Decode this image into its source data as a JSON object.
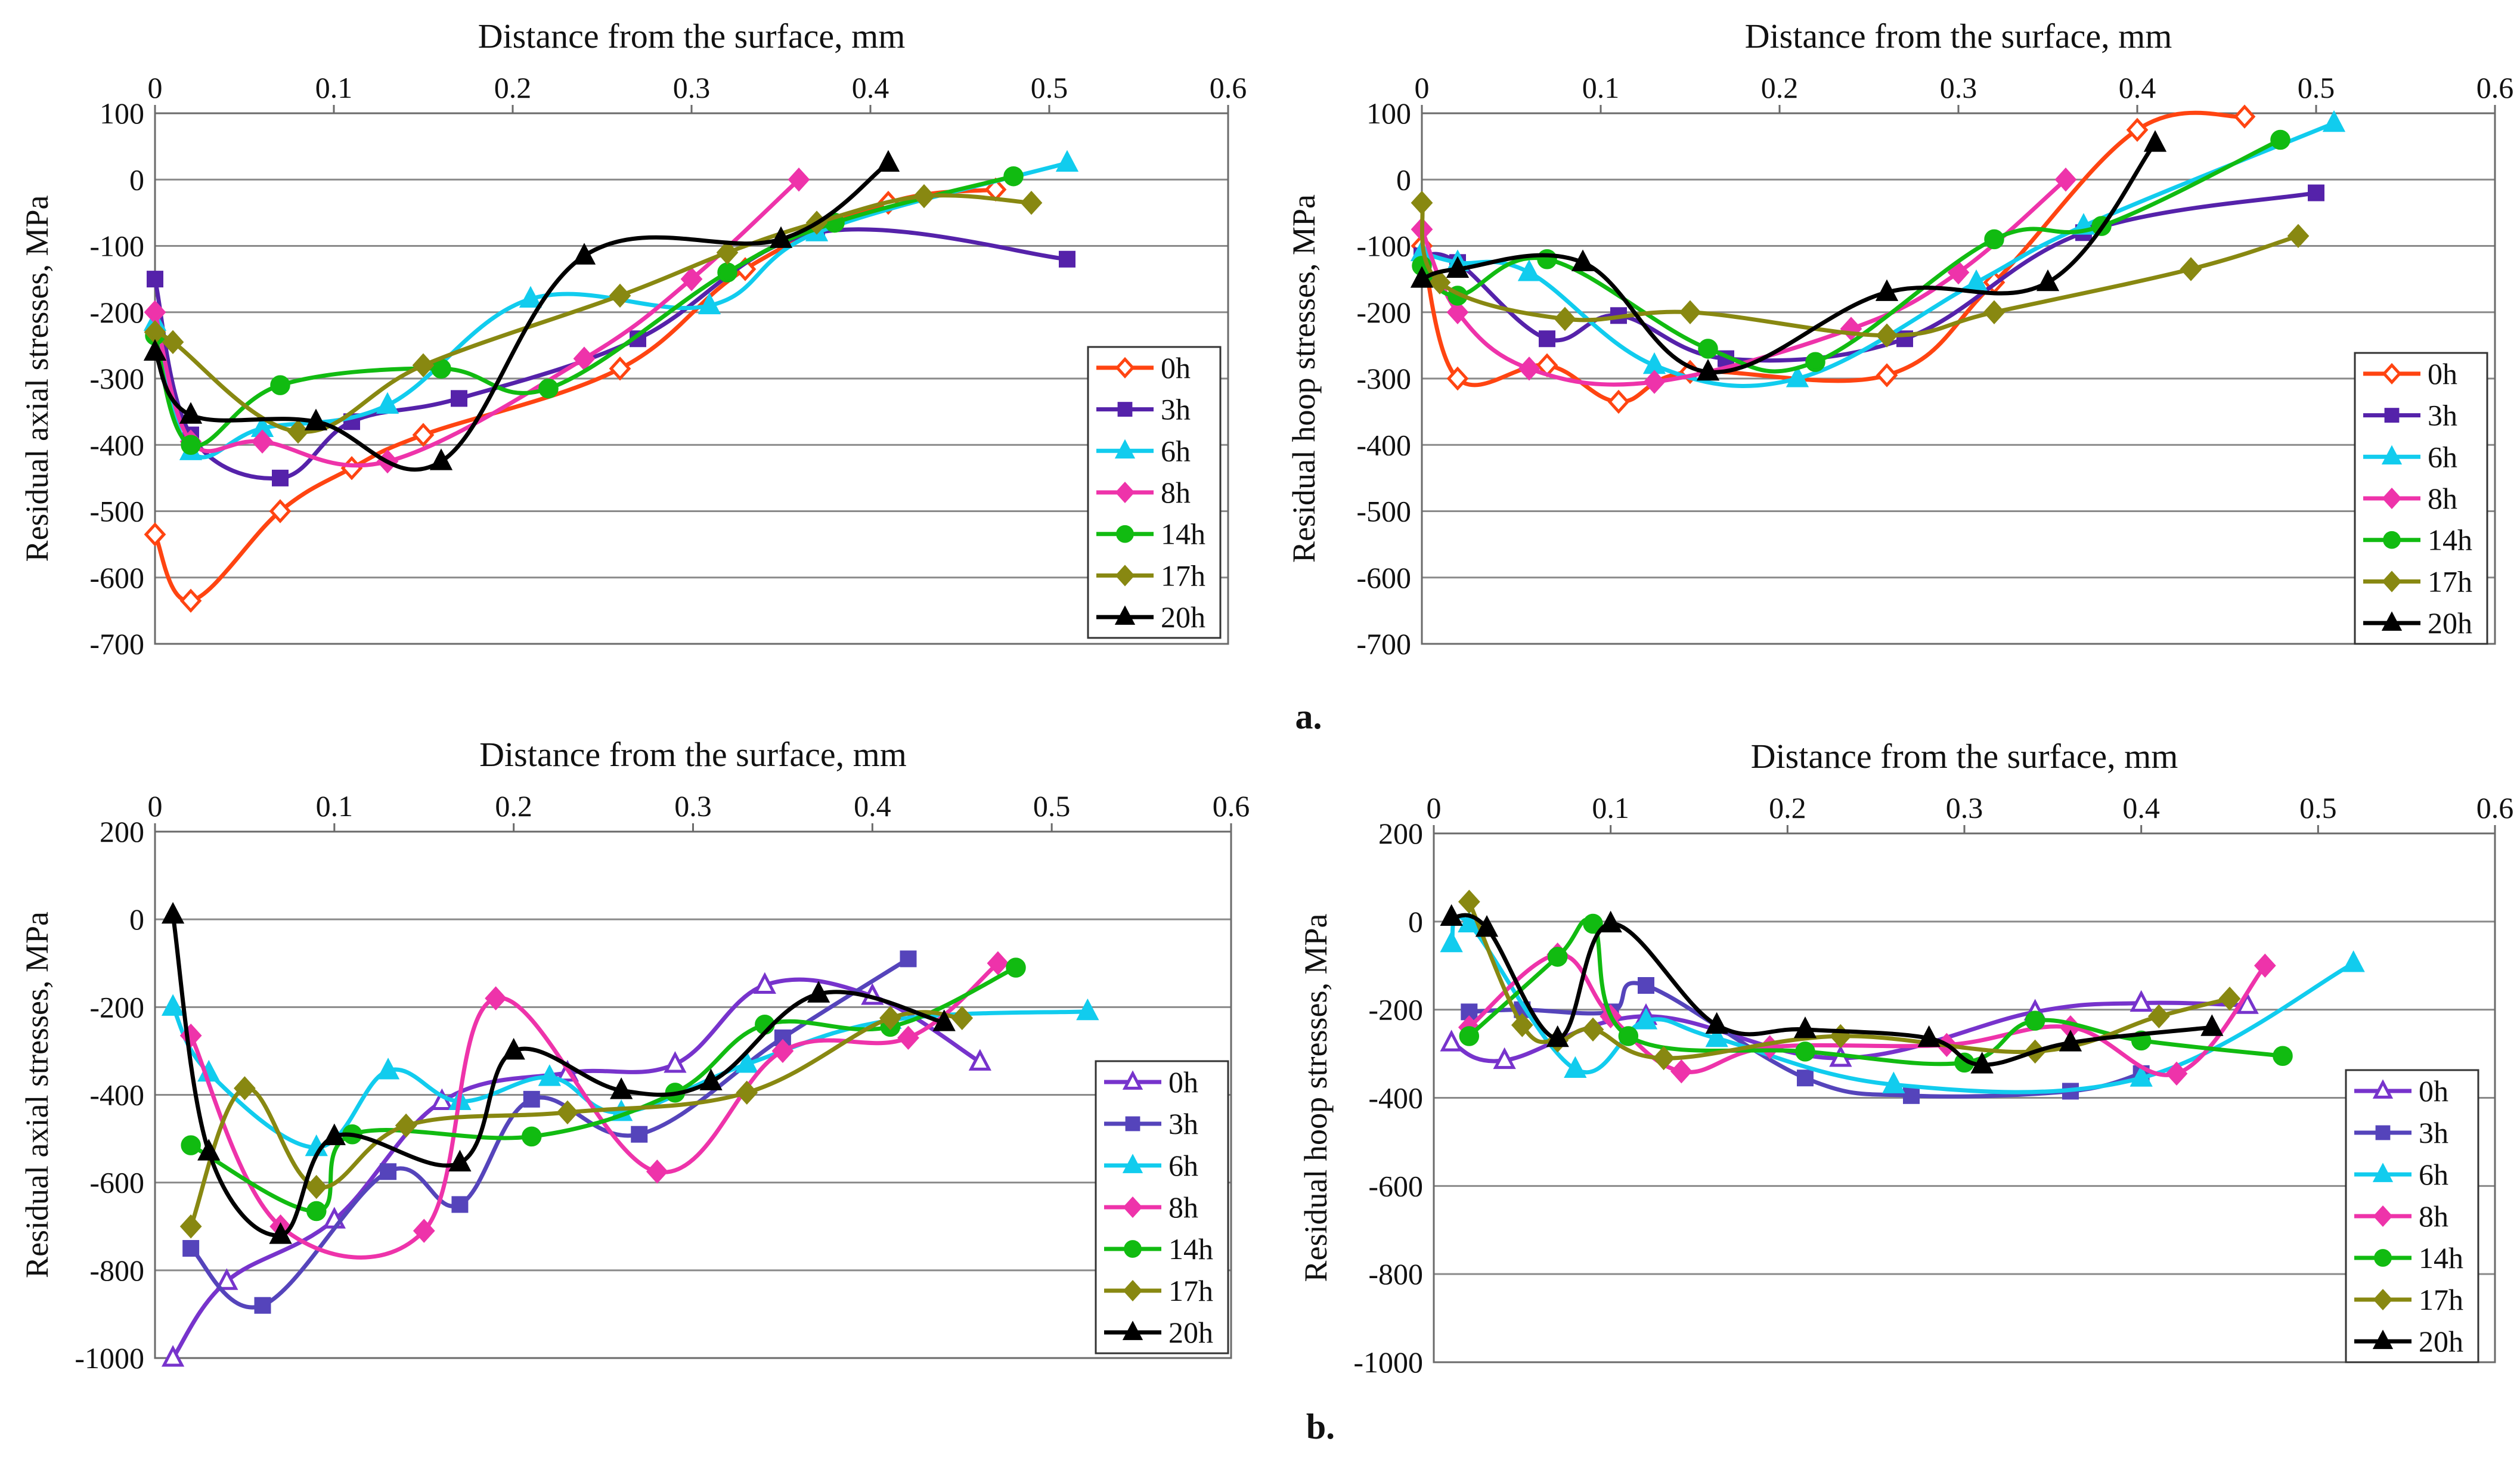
{
  "labels": {
    "panel_a": "a.",
    "panel_b": "b."
  },
  "chart_data": [
    {
      "id": "a-axial",
      "type": "line",
      "xlabel": "Distance from the surface, mm",
      "ylabel": "Residual axial stresses, MPa",
      "xlim": [
        0,
        0.6
      ],
      "xticks": [
        "0",
        "0.1",
        "0.2",
        "0.3",
        "0.4",
        "0.5",
        "0.6"
      ],
      "ylim": [
        -700,
        100
      ],
      "yticks": [
        "100",
        "0",
        "-100",
        "-200",
        "-300",
        "-400",
        "-500",
        "-600",
        "-700"
      ],
      "legend_position": "bottom-right",
      "grid": "horizontal",
      "series": [
        {
          "name": "0h",
          "color": "#ff4411",
          "marker": "diamond-open",
          "x": [
            0,
            0.02,
            0.07,
            0.11,
            0.15,
            0.26,
            0.33,
            0.41,
            0.47
          ],
          "y": [
            -535,
            -635,
            -500,
            -435,
            -385,
            -285,
            -135,
            -35,
            -15
          ]
        },
        {
          "name": "3h",
          "color": "#5522aa",
          "marker": "square",
          "x": [
            0,
            0.02,
            0.07,
            0.11,
            0.17,
            0.27,
            0.37,
            0.51
          ],
          "y": [
            -150,
            -385,
            -450,
            -365,
            -330,
            -240,
            -80,
            -120
          ]
        },
        {
          "name": "6h",
          "color": "#11ccee",
          "marker": "triangle",
          "x": [
            0,
            0.02,
            0.06,
            0.13,
            0.21,
            0.31,
            0.37,
            0.51
          ],
          "y": [
            -215,
            -410,
            -375,
            -340,
            -180,
            -190,
            -80,
            25
          ]
        },
        {
          "name": "8h",
          "color": "#ee33aa",
          "marker": "diamond",
          "x": [
            0,
            0.02,
            0.06,
            0.13,
            0.24,
            0.3,
            0.36
          ],
          "y": [
            -200,
            -395,
            -395,
            -425,
            -270,
            -150,
            0
          ]
        },
        {
          "name": "14h",
          "color": "#11bb11",
          "marker": "circle",
          "x": [
            0,
            0.02,
            0.07,
            0.16,
            0.22,
            0.32,
            0.38,
            0.48
          ],
          "y": [
            -235,
            -400,
            -310,
            -285,
            -315,
            -140,
            -65,
            5
          ]
        },
        {
          "name": "17h",
          "color": "#888811",
          "marker": "diamond",
          "x": [
            0,
            0.01,
            0.08,
            0.15,
            0.26,
            0.32,
            0.37,
            0.43,
            0.49
          ],
          "y": [
            -230,
            -245,
            -380,
            -280,
            -175,
            -110,
            -65,
            -25,
            -35
          ]
        },
        {
          "name": "20h",
          "color": "#000000",
          "marker": "triangle",
          "x": [
            0,
            0.02,
            0.09,
            0.16,
            0.24,
            0.35,
            0.41
          ],
          "y": [
            -260,
            -355,
            -365,
            -425,
            -115,
            -90,
            25
          ]
        }
      ]
    },
    {
      "id": "a-hoop",
      "type": "line",
      "xlabel": "Distance from the surface, mm",
      "ylabel": "Residual hoop stresses, MPa",
      "xlim": [
        0,
        0.6
      ],
      "xticks": [
        "0",
        "0.1",
        "0.2",
        "0.3",
        "0.4",
        "0.5",
        "0.6"
      ],
      "ylim": [
        -700,
        100
      ],
      "yticks": [
        "100",
        "0",
        "-100",
        "-200",
        "-300",
        "-400",
        "-500",
        "-600",
        "-700"
      ],
      "legend_position": "bottom-right",
      "grid": "horizontal",
      "series": [
        {
          "name": "0h",
          "color": "#ff4411",
          "marker": "diamond-open",
          "x": [
            0,
            0.02,
            0.07,
            0.11,
            0.15,
            0.26,
            0.32,
            0.4,
            0.46
          ],
          "y": [
            -100,
            -300,
            -280,
            -335,
            -290,
            -295,
            -155,
            75,
            95
          ]
        },
        {
          "name": "3h",
          "color": "#5522aa",
          "marker": "square",
          "x": [
            0,
            0.02,
            0.07,
            0.11,
            0.17,
            0.27,
            0.37,
            0.5
          ],
          "y": [
            -115,
            -125,
            -240,
            -205,
            -270,
            -240,
            -80,
            -20
          ]
        },
        {
          "name": "6h",
          "color": "#11ccee",
          "marker": "triangle",
          "x": [
            0,
            0.02,
            0.06,
            0.13,
            0.21,
            0.31,
            0.37,
            0.51
          ],
          "y": [
            -110,
            -125,
            -140,
            -280,
            -300,
            -155,
            -70,
            85
          ]
        },
        {
          "name": "8h",
          "color": "#ee33aa",
          "marker": "diamond",
          "x": [
            0,
            0.02,
            0.06,
            0.13,
            0.24,
            0.3,
            0.36
          ],
          "y": [
            -75,
            -200,
            -285,
            -305,
            -225,
            -140,
            0
          ]
        },
        {
          "name": "14h",
          "color": "#11bb11",
          "marker": "circle",
          "x": [
            0,
            0.02,
            0.07,
            0.16,
            0.22,
            0.32,
            0.38,
            0.48
          ],
          "y": [
            -130,
            -175,
            -120,
            -255,
            -275,
            -90,
            -70,
            60
          ]
        },
        {
          "name": "17h",
          "color": "#888811",
          "marker": "diamond",
          "x": [
            0,
            0.01,
            0.08,
            0.15,
            0.26,
            0.32,
            0.43,
            0.49
          ],
          "y": [
            -35,
            -155,
            -210,
            -200,
            -235,
            -200,
            -135,
            -85
          ]
        },
        {
          "name": "20h",
          "color": "#000000",
          "marker": "triangle",
          "x": [
            0,
            0.02,
            0.09,
            0.16,
            0.26,
            0.35,
            0.41
          ],
          "y": [
            -150,
            -135,
            -125,
            -290,
            -170,
            -155,
            55
          ]
        }
      ]
    },
    {
      "id": "b-axial",
      "type": "line",
      "xlabel": "Distance from the surface, mm",
      "ylabel": "Residual axial stresses, MPa",
      "xlim": [
        0,
        0.6
      ],
      "xticks": [
        "0",
        "0.1",
        "0.2",
        "0.3",
        "0.4",
        "0.5",
        "0.6"
      ],
      "ylim": [
        -1000,
        200
      ],
      "yticks": [
        "200",
        "0",
        "-200",
        "-400",
        "-600",
        "-800",
        "-1000"
      ],
      "legend_position": "bottom-right",
      "grid": "horizontal",
      "series": [
        {
          "name": "0h",
          "color": "#7733cc",
          "marker": "triangle-open",
          "x": [
            0.01,
            0.04,
            0.1,
            0.16,
            0.23,
            0.29,
            0.34,
            0.4,
            0.46
          ],
          "y": [
            -1000,
            -825,
            -685,
            -415,
            -350,
            -330,
            -150,
            -175,
            -325
          ]
        },
        {
          "name": "3h",
          "color": "#5544bb",
          "marker": "square",
          "x": [
            0.02,
            0.06,
            0.13,
            0.17,
            0.21,
            0.27,
            0.35,
            0.42
          ],
          "y": [
            -750,
            -880,
            -575,
            -650,
            -410,
            -490,
            -270,
            -90
          ]
        },
        {
          "name": "6h",
          "color": "#11ccee",
          "marker": "triangle",
          "x": [
            0.01,
            0.03,
            0.09,
            0.13,
            0.17,
            0.22,
            0.26,
            0.33,
            0.41,
            0.52
          ],
          "y": [
            -200,
            -350,
            -520,
            -345,
            -415,
            -360,
            -440,
            -330,
            -230,
            -210
          ]
        },
        {
          "name": "8h",
          "color": "#ee33aa",
          "marker": "diamond",
          "x": [
            0.02,
            0.07,
            0.15,
            0.19,
            0.28,
            0.35,
            0.42,
            0.47
          ],
          "y": [
            -265,
            -700,
            -710,
            -180,
            -575,
            -300,
            -270,
            -100
          ]
        },
        {
          "name": "14h",
          "color": "#11bb11",
          "marker": "circle",
          "x": [
            0.02,
            0.09,
            0.11,
            0.21,
            0.29,
            0.34,
            0.41,
            0.48
          ],
          "y": [
            -515,
            -665,
            -490,
            -495,
            -395,
            -240,
            -245,
            -110
          ]
        },
        {
          "name": "17h",
          "color": "#888811",
          "marker": "diamond",
          "x": [
            0.02,
            0.05,
            0.09,
            0.14,
            0.23,
            0.33,
            0.41,
            0.45
          ],
          "y": [
            -700,
            -385,
            -610,
            -470,
            -440,
            -395,
            -225,
            -225
          ]
        },
        {
          "name": "20h",
          "color": "#000000",
          "marker": "triangle",
          "x": [
            0.01,
            0.03,
            0.07,
            0.1,
            0.17,
            0.2,
            0.26,
            0.31,
            0.37,
            0.44
          ],
          "y": [
            10,
            -530,
            -720,
            -495,
            -555,
            -300,
            -390,
            -370,
            -170,
            -235
          ]
        }
      ]
    },
    {
      "id": "b-hoop",
      "type": "line",
      "xlabel": "Distance from the surface, mm",
      "ylabel": "Residual hoop stresses, MPa",
      "xlim": [
        0,
        0.6
      ],
      "xticks": [
        "0",
        "0.1",
        "0.2",
        "0.3",
        "0.4",
        "0.5",
        "0.6"
      ],
      "ylim": [
        -1000,
        200
      ],
      "yticks": [
        "200",
        "0",
        "-200",
        "-400",
        "-600",
        "-800",
        "-1000"
      ],
      "legend_position": "bottom-right",
      "grid": "horizontal",
      "series": [
        {
          "name": "0h",
          "color": "#7733cc",
          "marker": "triangle-open",
          "x": [
            0.01,
            0.04,
            0.12,
            0.23,
            0.34,
            0.4,
            0.46
          ],
          "y": [
            -275,
            -315,
            -215,
            -310,
            -205,
            -185,
            -190
          ]
        },
        {
          "name": "3h",
          "color": "#5544bb",
          "marker": "square",
          "x": [
            0.02,
            0.05,
            0.1,
            0.12,
            0.21,
            0.27,
            0.36,
            0.4
          ],
          "y": [
            -205,
            -200,
            -205,
            -145,
            -355,
            -395,
            -385,
            -345
          ]
        },
        {
          "name": "6h",
          "color": "#11ccee",
          "marker": "triangle",
          "x": [
            0.01,
            0.02,
            0.08,
            0.12,
            0.16,
            0.26,
            0.4,
            0.52
          ],
          "y": [
            -50,
            -5,
            -335,
            -225,
            -265,
            -370,
            -355,
            -95
          ]
        },
        {
          "name": "8h",
          "color": "#ee33aa",
          "marker": "diamond",
          "x": [
            0.02,
            0.07,
            0.1,
            0.14,
            0.19,
            0.29,
            0.36,
            0.42,
            0.47
          ],
          "y": [
            -240,
            -75,
            -215,
            -340,
            -285,
            -280,
            -240,
            -345,
            -100
          ]
        },
        {
          "name": "14h",
          "color": "#11bb11",
          "marker": "circle",
          "x": [
            0.02,
            0.07,
            0.09,
            0.11,
            0.21,
            0.3,
            0.34,
            0.4,
            0.48
          ],
          "y": [
            -260,
            -80,
            -5,
            -260,
            -295,
            -320,
            -225,
            -270,
            -305
          ]
        },
        {
          "name": "17h",
          "color": "#888811",
          "marker": "diamond",
          "x": [
            0.02,
            0.05,
            0.07,
            0.09,
            0.13,
            0.23,
            0.34,
            0.41,
            0.45
          ],
          "y": [
            45,
            -235,
            -270,
            -245,
            -310,
            -260,
            -295,
            -215,
            -175
          ]
        },
        {
          "name": "20h",
          "color": "#000000",
          "marker": "triangle",
          "x": [
            0.01,
            0.03,
            0.07,
            0.1,
            0.16,
            0.21,
            0.28,
            0.31,
            0.36,
            0.44
          ],
          "y": [
            10,
            -15,
            -265,
            -5,
            -235,
            -245,
            -265,
            -325,
            -275,
            -240
          ]
        }
      ]
    }
  ]
}
